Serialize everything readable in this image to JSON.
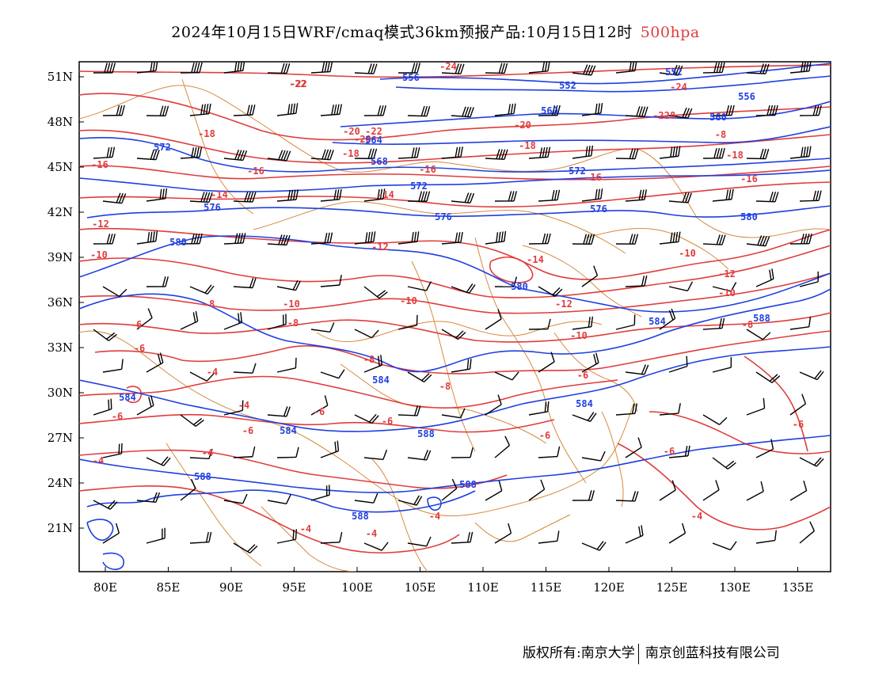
{
  "title": {
    "main": "2024年10月15日WRF/cmaq模式36km预报产品:10月15日12时",
    "level": "500hpa"
  },
  "colors": {
    "temperature": "#e03c3c",
    "height": "#1f3fe0",
    "border": "#d68a3c",
    "wind": "#000000"
  },
  "axes": {
    "lat_labels": [
      "51N",
      "48N",
      "45N",
      "42N",
      "39N",
      "36N",
      "33N",
      "30N",
      "27N",
      "24N",
      "21N"
    ],
    "lon_labels": [
      "80E",
      "85E",
      "90E",
      "95E",
      "100E",
      "105E",
      "110E",
      "115E",
      "120E",
      "125E",
      "130E",
      "135E"
    ]
  },
  "temperature_labels": [
    "-24",
    "-22",
    "-24",
    "-22",
    "-20",
    "-20",
    "-22",
    "-20",
    "-22",
    "-18",
    "-18",
    "-18",
    "-18",
    "-16",
    "-16",
    "-16",
    "-16",
    "-16",
    "-14",
    "-14",
    "-14",
    "-12",
    "-12",
    "-12",
    "-12",
    "-10",
    "-10",
    "-10",
    "-10",
    "-10",
    "-10",
    "-8",
    "-8",
    "-8",
    "-8",
    "-8",
    "-6",
    "-6",
    "-6",
    "-6",
    "-6",
    "-6",
    "-6",
    "-6",
    "-6",
    "-4",
    "-4",
    "-4",
    "-4",
    "-4",
    "-4",
    "-4",
    "-6",
    "-4",
    "-8",
    "-8"
  ],
  "height_labels": [
    "552",
    "556",
    "552",
    "556",
    "560",
    "560",
    "564",
    "568",
    "572",
    "572",
    "572",
    "576",
    "576",
    "576",
    "580",
    "580",
    "580",
    "584",
    "584",
    "584",
    "584",
    "584",
    "588",
    "588",
    "588",
    "588",
    "588"
  ],
  "footer": {
    "left": "版权所有:南京大学",
    "right": "南京创蓝科技有限公司"
  }
}
